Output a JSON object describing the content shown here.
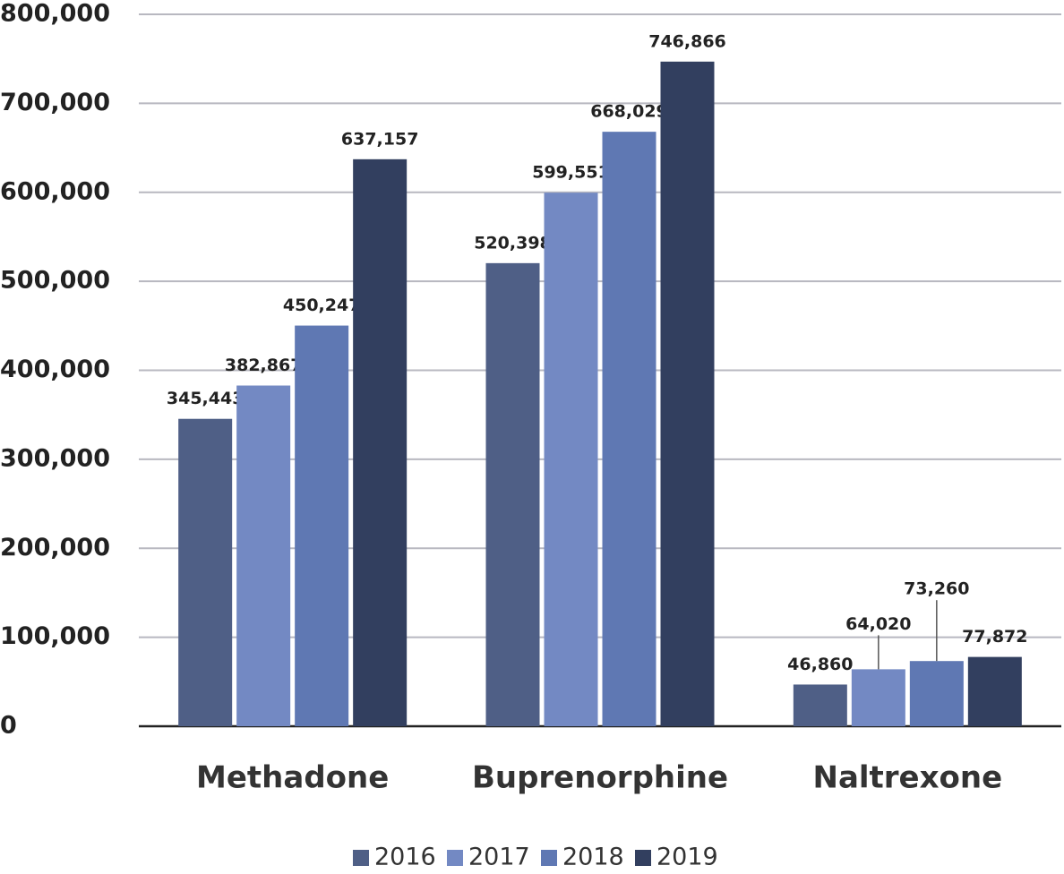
{
  "chart_data": {
    "type": "bar",
    "categories": [
      "Methadone",
      "Buprenorphine",
      "Naltrexone"
    ],
    "series": [
      {
        "name": "2016",
        "color": "#4f5f86",
        "values": [
          345443,
          520398,
          46860
        ],
        "value_labels": [
          "345,443",
          "520,398",
          "46,860"
        ]
      },
      {
        "name": "2017",
        "color": "#7389c3",
        "values": [
          382867,
          599551,
          64020
        ],
        "value_labels": [
          "382,867",
          "599,551",
          "64,020"
        ]
      },
      {
        "name": "2018",
        "color": "#5f78b3",
        "values": [
          450247,
          668029,
          73260
        ],
        "value_labels": [
          "450,247",
          "668,029",
          "73,260"
        ]
      },
      {
        "name": "2019",
        "color": "#323f5f",
        "values": [
          637157,
          746866,
          77872
        ],
        "value_labels": [
          "637,157",
          "746,866",
          "77,872"
        ]
      }
    ],
    "ylim": [
      0,
      800000
    ],
    "yticks": [
      0,
      {
        "value": 100000,
        "label": "100,000"
      },
      {
        "value": 200000,
        "label": "200,000"
      },
      {
        "value": 300000,
        "label": "300,000"
      },
      {
        "value": 400000,
        "label": "400,000"
      },
      {
        "value": 500000,
        "label": "500,000"
      },
      {
        "value": 600000,
        "label": "600,000"
      },
      {
        "value": 700000,
        "label": "700,000"
      },
      {
        "value": 800000,
        "label": "800,000"
      }
    ],
    "grid": true,
    "legend": "bottom"
  }
}
